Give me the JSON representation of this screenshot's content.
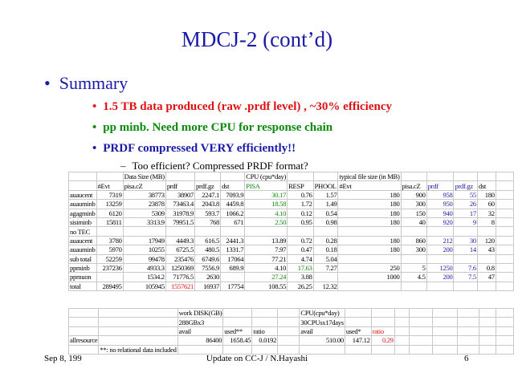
{
  "header": {
    "title": "MDCJ-2 (cont’d)"
  },
  "summary": {
    "heading": "Summary",
    "bullets": [
      "1.5 TB data produced (raw .prdf level) , ~30% efficiency",
      "pp minb. Need more CPU for response chain",
      "PRDF compressed VERY efficiently!!"
    ],
    "sub_bullet": "Too efficient? Compressed PRDF format?"
  },
  "table": {
    "rows": [
      [
        null,
        null,
        "Data Size (MB)",
        null,
        null,
        null,
        "CPU (cpu*day)",
        null,
        null,
        "typical file size (in MB)",
        null,
        null,
        null,
        null
      ],
      [
        null,
        "#Evt",
        "pisa.cZ",
        "prdf",
        "prdf.gz",
        "dst",
        "PISA",
        "RESP",
        "PHOOL",
        "#Evt",
        "pisa.cZ",
        "prdf",
        "prdf.gz",
        "dst"
      ],
      [
        "auaucent",
        "7319",
        "38773",
        "38907",
        "2247.1",
        "7093.9",
        "30.17",
        "0.76",
        "1.57",
        "180",
        "900",
        "958",
        "55",
        "180"
      ],
      [
        "auauminb",
        "13259",
        "23878",
        "73463.4",
        "2043.8",
        "4459.8",
        "18.58",
        "1.72",
        "1.49",
        "180",
        "300",
        "950",
        "26",
        "60"
      ],
      [
        "agagminb",
        "6120",
        "5309",
        "31978.9",
        "593.7",
        "1066.2",
        "4.10",
        "0.12",
        "0.54",
        "180",
        "150",
        "940",
        "17",
        "32"
      ],
      [
        "sisiminb",
        "15811",
        "3313.9",
        "79951.5",
        "768",
        "671",
        "2.50",
        "0.95",
        "0.98",
        "180",
        "40",
        "920",
        "9",
        "8"
      ],
      [
        "no TEC",
        null,
        null,
        null,
        null,
        null,
        null,
        null,
        null,
        null,
        null,
        null,
        null,
        null
      ],
      [
        "auaucent",
        "3780",
        "17949",
        "4449.3",
        "616.5",
        "2441.3",
        "13.89",
        "0.72",
        "0.28",
        "180",
        "860",
        "212",
        "30",
        "120"
      ],
      [
        "auauminb",
        "5970",
        "10255",
        "6725.5",
        "480.5",
        "1331.7",
        "7.97",
        "0.47",
        "0.18",
        "180",
        "300",
        "200",
        "14",
        "43"
      ],
      [
        "sub total",
        "52259",
        "99478",
        "235476",
        "6749.6",
        "17064",
        "77.21",
        "4.74",
        "5.04",
        null,
        null,
        null,
        null,
        null
      ],
      [
        "ppminb",
        "237236",
        "4933.3",
        "1250369",
        "7556.9",
        "689.9",
        "4.10",
        "17.63",
        "7.27",
        "250",
        "5",
        "1250",
        "7.6",
        "0.8"
      ],
      [
        "ppmuon",
        null,
        "1534.2",
        "71776.5",
        "2630",
        null,
        "27.24",
        "3.88",
        null,
        "1000",
        "4.5",
        "200",
        "7.5",
        "47"
      ],
      [
        "total",
        "289495",
        "105945",
        "1557621",
        "16937",
        "17754",
        "108.55",
        "26.25",
        "12.32",
        null,
        null,
        null,
        null,
        null
      ]
    ]
  },
  "table2": {
    "rows": [
      [
        null,
        null,
        "work DISK(GB)",
        null,
        null,
        null,
        "CPU(cpu*day)",
        null,
        null,
        null,
        null,
        null,
        null,
        null
      ],
      [
        null,
        null,
        "288GBx3",
        null,
        null,
        null,
        "30CPUsx17days",
        null,
        null,
        null,
        null,
        null,
        null,
        null
      ],
      [
        null,
        null,
        "avail",
        "used**",
        "ratio",
        null,
        "avail",
        "used*",
        "ratio",
        null,
        null,
        null,
        null,
        null
      ],
      [
        "allresource",
        null,
        "86400",
        "1658.45",
        "0.0192",
        null,
        "510.00",
        "147.12",
        "0.29",
        null,
        null,
        null,
        null,
        null
      ],
      [
        null,
        "**: no relational data included",
        null,
        null,
        null,
        null,
        null,
        null,
        null,
        null,
        null,
        null,
        null,
        null
      ]
    ]
  },
  "footer": {
    "date": "Sep 8, 199",
    "center": "Update on CC-J / N.Hayashi",
    "page": "6"
  }
}
